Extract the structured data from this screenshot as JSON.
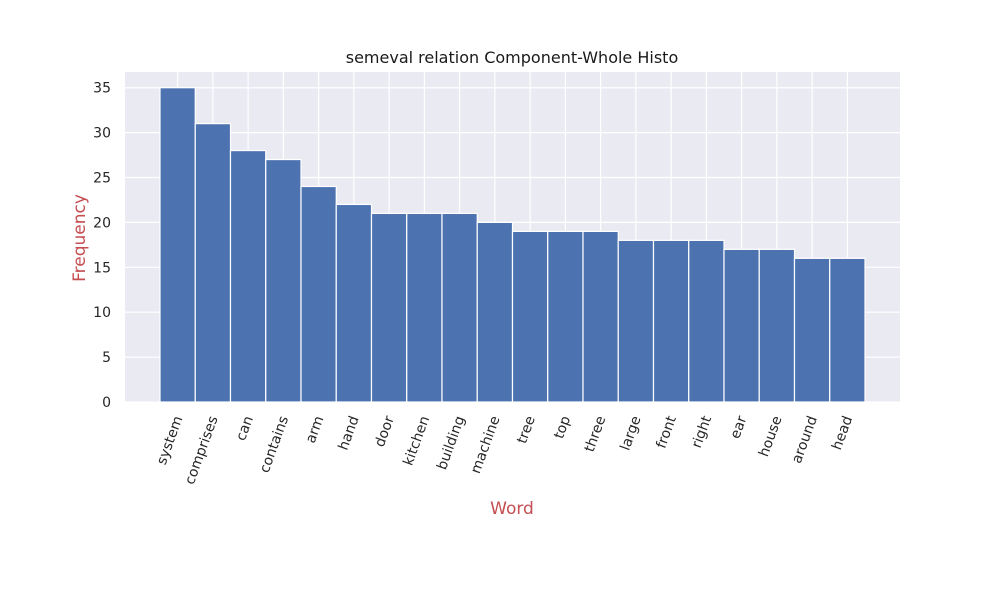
{
  "chart_data": {
    "type": "bar",
    "title": "semeval relation Component-Whole Histo",
    "xlabel": "Word",
    "ylabel": "Frequency",
    "categories": [
      "system",
      "comprises",
      "can",
      "contains",
      "arm",
      "hand",
      "door",
      "kitchen",
      "building",
      "machine",
      "tree",
      "top",
      "three",
      "large",
      "front",
      "right",
      "ear",
      "house",
      "around",
      "head"
    ],
    "values": [
      35,
      31,
      28,
      27,
      24,
      22,
      21,
      21,
      21,
      20,
      19,
      19,
      19,
      18,
      18,
      18,
      17,
      17,
      16,
      16
    ],
    "ylim": [
      0,
      36.75
    ],
    "yticks": [
      0,
      5,
      10,
      15,
      20,
      25,
      30,
      35
    ],
    "grid": true,
    "colors": {
      "bar": "#4c72b0",
      "plot_background": "#eaeaf2",
      "axis_label": "#c44e52"
    }
  }
}
